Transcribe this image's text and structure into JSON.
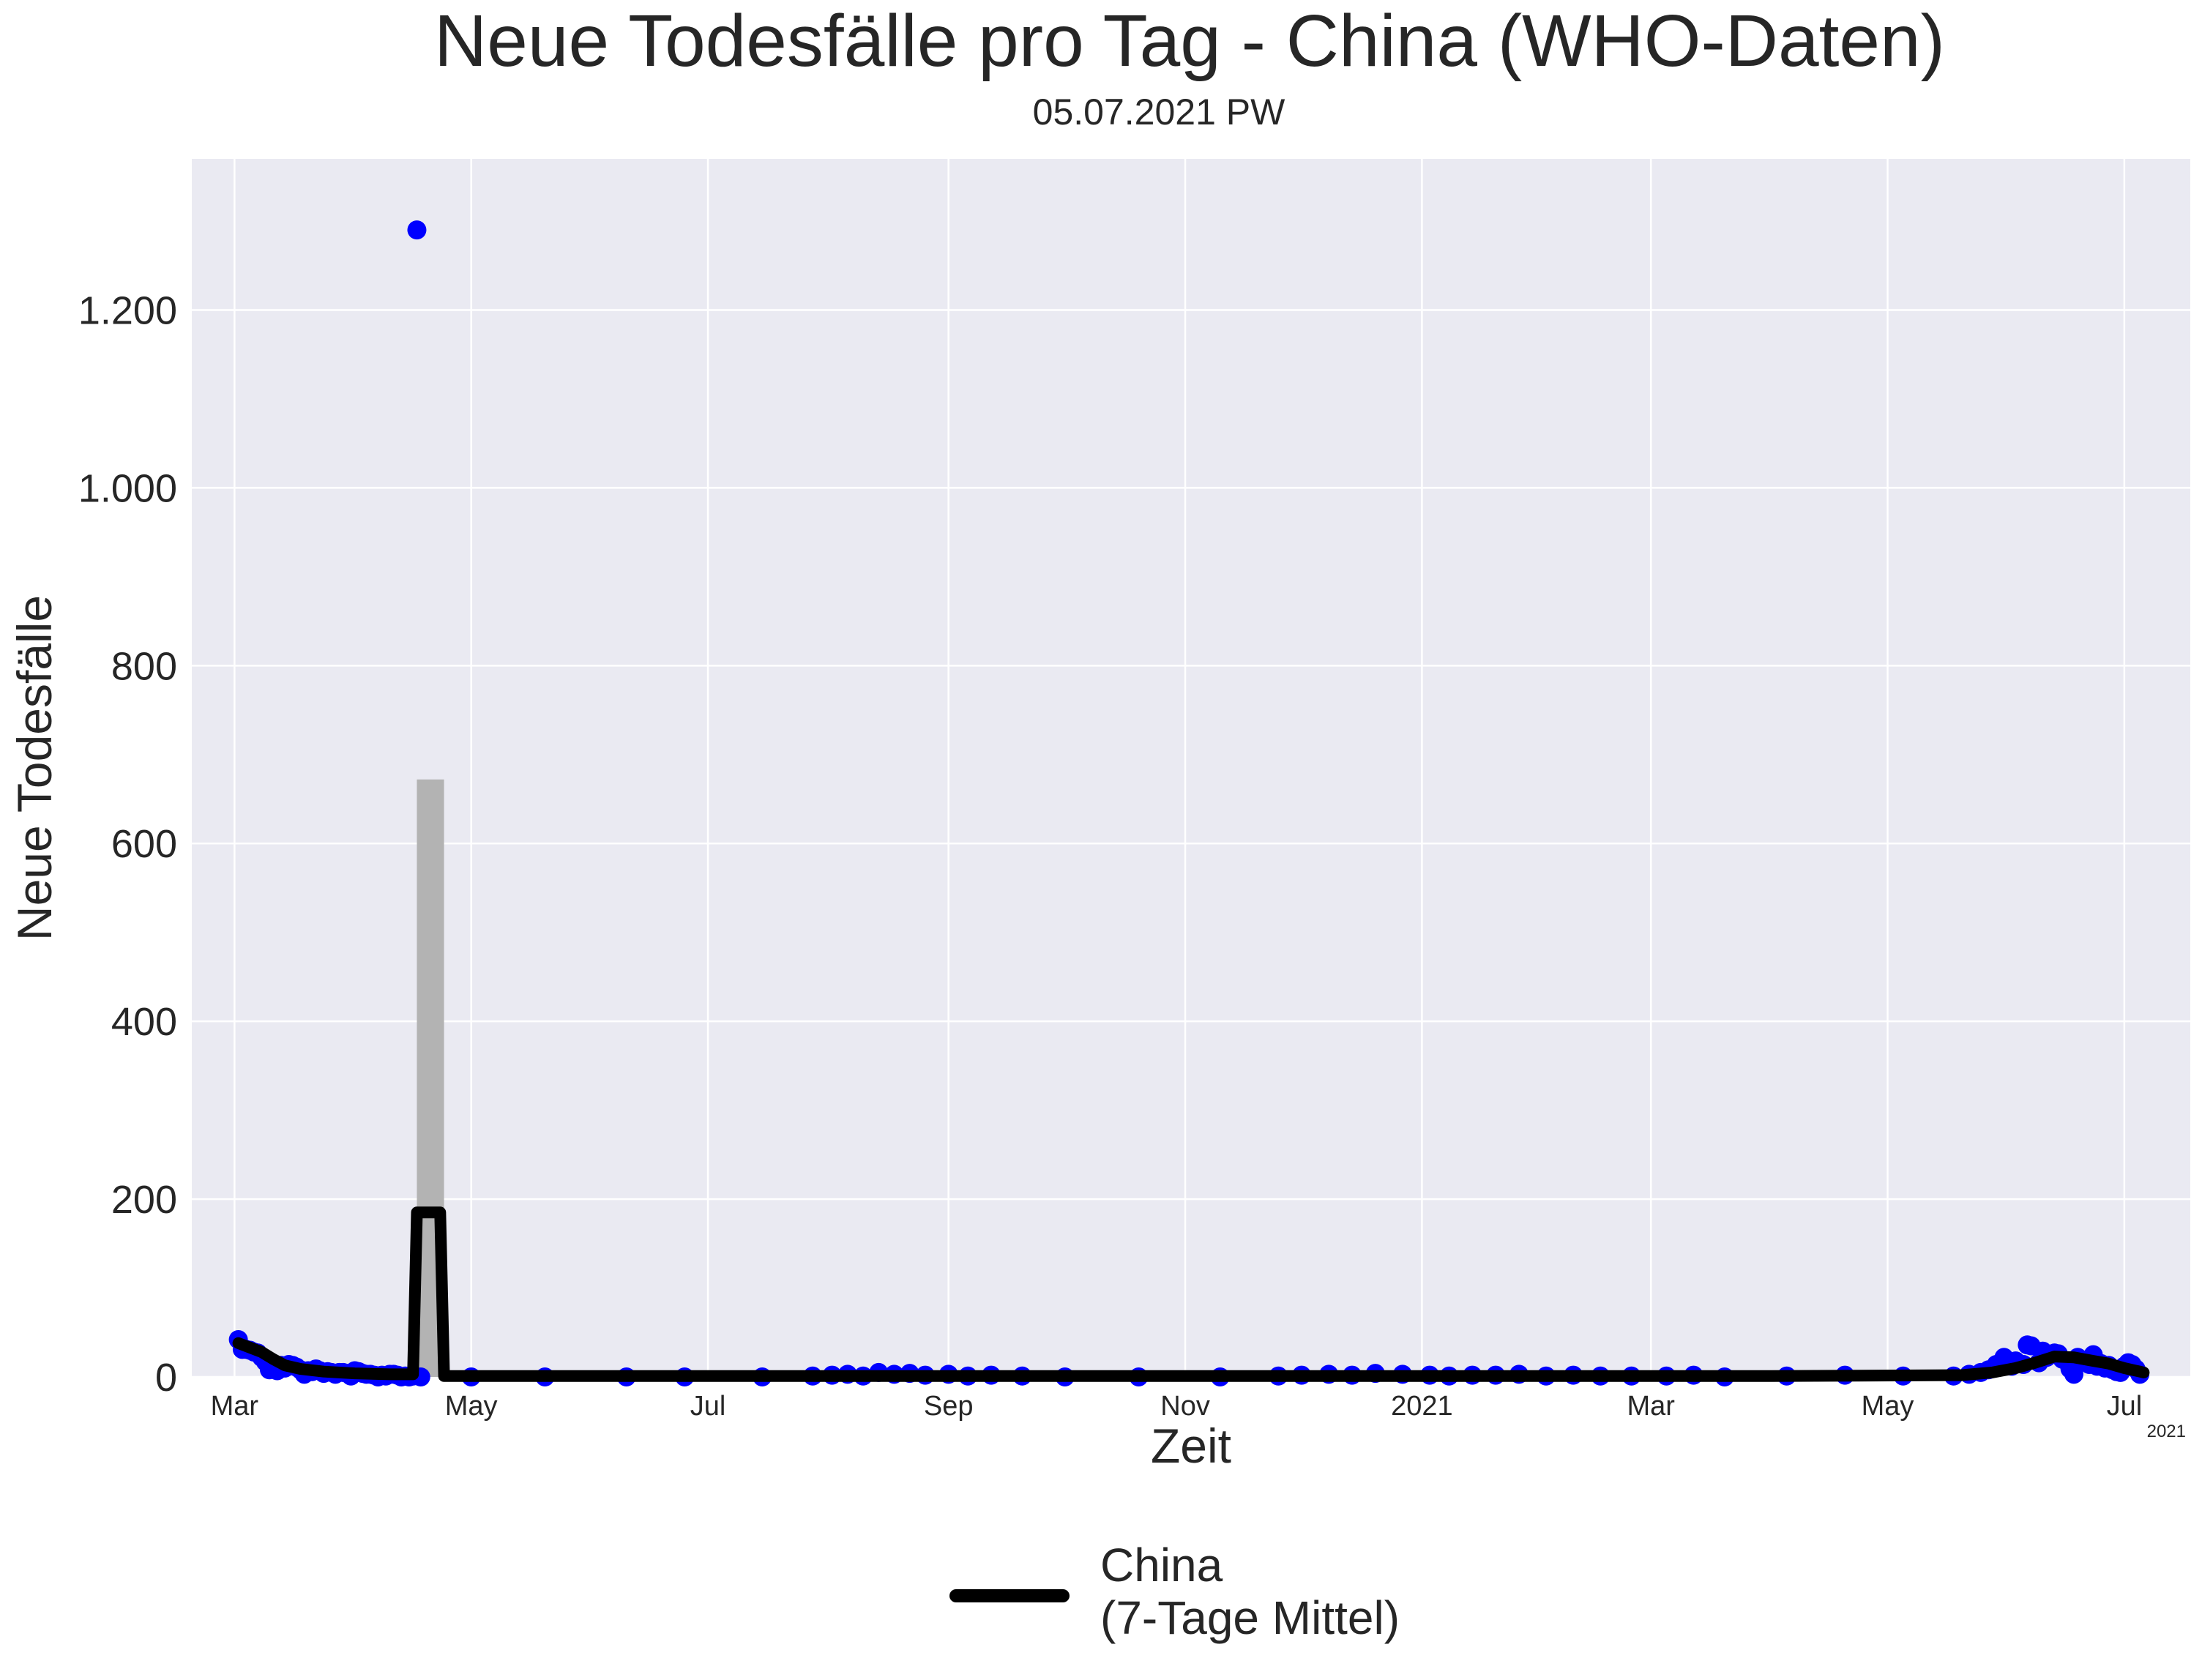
{
  "chart_data": {
    "type": "line",
    "title": "Neue Todesfälle pro Tag - China (WHO-Daten)",
    "subtitle": "05.07.2021 PW",
    "xlabel": "Zeit",
    "ylabel": "Neue Todesfälle",
    "x_offset_label": "2021",
    "ylim": [
      0,
      1370
    ],
    "xlim": [
      "2020-02-19",
      "2021-07-18"
    ],
    "yticks": [
      0,
      200,
      400,
      600,
      800,
      1000,
      1200
    ],
    "ytick_labels": [
      "0",
      "200",
      "400",
      "600",
      "800",
      "1.000",
      "1.200"
    ],
    "xticks": [
      "2020-03-01",
      "2020-05-01",
      "2020-07-01",
      "2020-09-01",
      "2020-11-01",
      "2021-01-01",
      "2021-03-01",
      "2021-05-01",
      "2021-07-01"
    ],
    "xtick_labels": [
      "Mar",
      "May",
      "Jul",
      "Sep",
      "Nov",
      "2021",
      "Mar",
      "May",
      "Jul"
    ],
    "grid": true,
    "legend_position": "bottom-center",
    "colors": {
      "background": "#eaeaf2",
      "grid": "#ffffff",
      "daily": "#0000ff",
      "average": "#000000",
      "spike": "#b3b3b3"
    },
    "series": [
      {
        "name": "China\n(7-Tage Mittel)",
        "kind": "line",
        "color": "#000000",
        "points": [
          [
            "2020-03-02",
            38
          ],
          [
            "2020-03-05",
            33
          ],
          [
            "2020-03-08",
            28
          ],
          [
            "2020-03-11",
            20
          ],
          [
            "2020-03-14",
            13
          ],
          [
            "2020-03-18",
            9
          ],
          [
            "2020-03-24",
            6
          ],
          [
            "2020-04-01",
            4
          ],
          [
            "2020-04-10",
            3
          ],
          [
            "2020-04-16",
            3
          ],
          [
            "2020-04-17",
            185
          ],
          [
            "2020-04-23",
            185
          ],
          [
            "2020-04-24",
            1
          ],
          [
            "2020-06-01",
            1
          ],
          [
            "2020-08-01",
            1
          ],
          [
            "2020-10-01",
            1
          ],
          [
            "2020-12-01",
            1
          ],
          [
            "2021-02-01",
            1
          ],
          [
            "2021-04-01",
            1
          ],
          [
            "2021-05-20",
            2
          ],
          [
            "2021-05-28",
            5
          ],
          [
            "2021-06-03",
            10
          ],
          [
            "2021-06-08",
            16
          ],
          [
            "2021-06-13",
            23
          ],
          [
            "2021-06-18",
            22
          ],
          [
            "2021-06-23",
            18
          ],
          [
            "2021-06-27",
            15
          ],
          [
            "2021-07-01",
            10
          ],
          [
            "2021-07-04",
            7
          ],
          [
            "2021-07-06",
            5
          ]
        ]
      },
      {
        "kind": "scatter",
        "color": "#0000ff",
        "points": [
          [
            "2020-03-02",
            42
          ],
          [
            "2020-03-03",
            31
          ],
          [
            "2020-03-04",
            31
          ],
          [
            "2020-03-05",
            30
          ],
          [
            "2020-03-06",
            28
          ],
          [
            "2020-03-07",
            27
          ],
          [
            "2020-03-08",
            22
          ],
          [
            "2020-03-09",
            17
          ],
          [
            "2020-03-10",
            8
          ],
          [
            "2020-03-11",
            11
          ],
          [
            "2020-03-12",
            7
          ],
          [
            "2020-03-13",
            13
          ],
          [
            "2020-03-14",
            10
          ],
          [
            "2020-03-15",
            14
          ],
          [
            "2020-03-16",
            13
          ],
          [
            "2020-03-17",
            11
          ],
          [
            "2020-03-18",
            8
          ],
          [
            "2020-03-19",
            3
          ],
          [
            "2020-03-20",
            7
          ],
          [
            "2020-03-21",
            6
          ],
          [
            "2020-03-22",
            9
          ],
          [
            "2020-03-23",
            7
          ],
          [
            "2020-03-24",
            4
          ],
          [
            "2020-03-25",
            6
          ],
          [
            "2020-03-26",
            5
          ],
          [
            "2020-03-27",
            3
          ],
          [
            "2020-03-28",
            5
          ],
          [
            "2020-03-29",
            5
          ],
          [
            "2020-03-30",
            4
          ],
          [
            "2020-03-31",
            1
          ],
          [
            "2020-04-01",
            7
          ],
          [
            "2020-04-02",
            6
          ],
          [
            "2020-04-03",
            4
          ],
          [
            "2020-04-04",
            3
          ],
          [
            "2020-04-05",
            3
          ],
          [
            "2020-04-06",
            2
          ],
          [
            "2020-04-07",
            0
          ],
          [
            "2020-04-08",
            2
          ],
          [
            "2020-04-09",
            1
          ],
          [
            "2020-04-10",
            3
          ],
          [
            "2020-04-11",
            3
          ],
          [
            "2020-04-12",
            2
          ],
          [
            "2020-04-13",
            0
          ],
          [
            "2020-04-14",
            1
          ],
          [
            "2020-04-15",
            0
          ],
          [
            "2020-04-16",
            1
          ],
          [
            "2020-04-17",
            1290
          ],
          [
            "2020-04-18",
            0
          ],
          [
            "2020-05-01",
            0
          ],
          [
            "2020-05-20",
            0
          ],
          [
            "2020-06-10",
            0
          ],
          [
            "2020-06-25",
            0
          ],
          [
            "2020-07-15",
            0
          ],
          [
            "2020-07-28",
            1
          ],
          [
            "2020-08-02",
            2
          ],
          [
            "2020-08-06",
            3
          ],
          [
            "2020-08-10",
            1
          ],
          [
            "2020-08-14",
            5
          ],
          [
            "2020-08-18",
            3
          ],
          [
            "2020-08-22",
            4
          ],
          [
            "2020-08-26",
            2
          ],
          [
            "2020-09-01",
            3
          ],
          [
            "2020-09-06",
            1
          ],
          [
            "2020-09-12",
            2
          ],
          [
            "2020-09-20",
            1
          ],
          [
            "2020-10-01",
            0
          ],
          [
            "2020-10-20",
            0
          ],
          [
            "2020-11-10",
            0
          ],
          [
            "2020-11-25",
            1
          ],
          [
            "2020-12-01",
            2
          ],
          [
            "2020-12-08",
            3
          ],
          [
            "2020-12-14",
            2
          ],
          [
            "2020-12-20",
            4
          ],
          [
            "2020-12-27",
            3
          ],
          [
            "2021-01-03",
            2
          ],
          [
            "2021-01-08",
            1
          ],
          [
            "2021-01-14",
            2
          ],
          [
            "2021-01-20",
            2
          ],
          [
            "2021-01-26",
            3
          ],
          [
            "2021-02-02",
            1
          ],
          [
            "2021-02-09",
            2
          ],
          [
            "2021-02-16",
            1
          ],
          [
            "2021-02-24",
            1
          ],
          [
            "2021-03-05",
            1
          ],
          [
            "2021-03-12",
            2
          ],
          [
            "2021-03-20",
            0
          ],
          [
            "2021-04-05",
            1
          ],
          [
            "2021-04-20",
            2
          ],
          [
            "2021-05-05",
            1
          ],
          [
            "2021-05-18",
            1
          ],
          [
            "2021-05-22",
            3
          ],
          [
            "2021-05-25",
            5
          ],
          [
            "2021-05-27",
            8
          ],
          [
            "2021-05-29",
            14
          ],
          [
            "2021-05-31",
            22
          ],
          [
            "2021-06-02",
            12
          ],
          [
            "2021-06-03",
            18
          ],
          [
            "2021-06-05",
            14
          ],
          [
            "2021-06-06",
            36
          ],
          [
            "2021-06-07",
            35
          ],
          [
            "2021-06-09",
            16
          ],
          [
            "2021-06-10",
            29
          ],
          [
            "2021-06-11",
            22
          ],
          [
            "2021-06-13",
            27
          ],
          [
            "2021-06-14",
            26
          ],
          [
            "2021-06-15",
            20
          ],
          [
            "2021-06-16",
            18
          ],
          [
            "2021-06-17",
            9
          ],
          [
            "2021-06-18",
            3
          ],
          [
            "2021-06-19",
            22
          ],
          [
            "2021-06-20",
            17
          ],
          [
            "2021-06-21",
            19
          ],
          [
            "2021-06-22",
            14
          ],
          [
            "2021-06-23",
            25
          ],
          [
            "2021-06-24",
            12
          ],
          [
            "2021-06-25",
            15
          ],
          [
            "2021-06-26",
            10
          ],
          [
            "2021-06-27",
            13
          ],
          [
            "2021-06-28",
            8
          ],
          [
            "2021-06-29",
            6
          ],
          [
            "2021-06-30",
            5
          ],
          [
            "2021-07-01",
            12
          ],
          [
            "2021-07-02",
            16
          ],
          [
            "2021-07-03",
            14
          ],
          [
            "2021-07-04",
            9
          ],
          [
            "2021-07-05",
            3
          ]
        ]
      },
      {
        "kind": "band",
        "color": "#b3b3b3",
        "from": "2020-04-17",
        "to": "2020-04-23",
        "value": 672
      }
    ]
  }
}
